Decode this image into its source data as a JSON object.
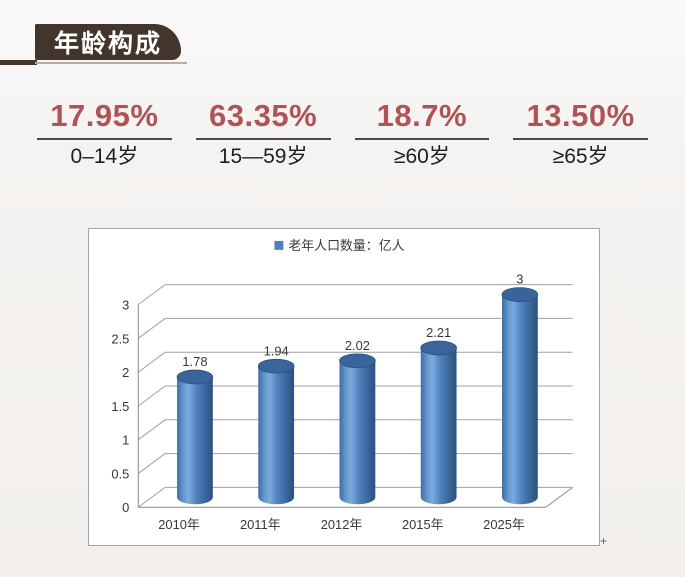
{
  "header": {
    "title": "年龄构成",
    "badge_color": "#42362c",
    "badge_text_color": "#ffffff"
  },
  "stats": {
    "accent_color": "#b05356",
    "items": [
      {
        "percent": "17.95%",
        "label": "0–14岁"
      },
      {
        "percent": "63.35%",
        "label": "15—59岁"
      },
      {
        "percent": "18.7%",
        "label": "≥60岁"
      },
      {
        "percent": "13.50%",
        "label": "≥65岁"
      }
    ]
  },
  "chart_data": {
    "type": "bar",
    "subtype": "3d-cylinder",
    "title": "",
    "xlabel": "",
    "ylabel": "",
    "legend": "老年人口数量：亿人",
    "legend_position": "top-center",
    "categories": [
      "2010年",
      "2011年",
      "2012年",
      "2015年",
      "2025年"
    ],
    "values": [
      1.78,
      1.94,
      2.02,
      2.21,
      3
    ],
    "data_labels": [
      "1.78",
      "1.94",
      "2.02",
      "2.21",
      "3"
    ],
    "ylim": [
      0,
      3
    ],
    "ytick_step": 0.5,
    "yticks": [
      "0",
      "0.5",
      "1",
      "1.5",
      "2",
      "2.5",
      "3"
    ],
    "grid": true,
    "bar_color": "#4f81bd",
    "bar_top_color": "#39649c",
    "grid_color": "#a0a0a0"
  },
  "misc": {
    "corner_marker": "+"
  }
}
